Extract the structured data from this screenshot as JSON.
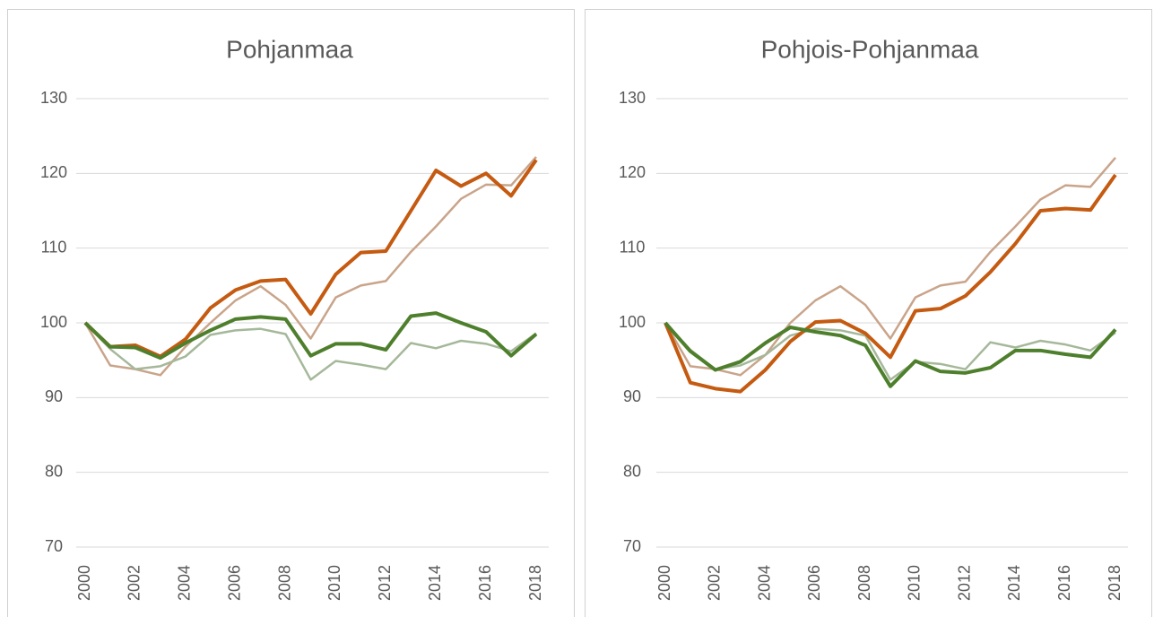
{
  "chart_data": [
    {
      "type": "line",
      "title": "Pohjanmaa",
      "x": [
        2000,
        2001,
        2002,
        2003,
        2004,
        2005,
        2006,
        2007,
        2008,
        2009,
        2010,
        2011,
        2012,
        2013,
        2014,
        2015,
        2016,
        2017,
        2018
      ],
      "xlim": [
        2000,
        2018
      ],
      "xticks": [
        2000,
        2002,
        2004,
        2006,
        2008,
        2010,
        2012,
        2014,
        2016,
        2018
      ],
      "ylim": [
        70,
        130
      ],
      "yticks": [
        70,
        80,
        90,
        100,
        110,
        120,
        130
      ],
      "grid": true,
      "series": [
        {
          "color": "#c9a48a",
          "values": [
            100,
            94.3,
            93.8,
            93,
            96.8,
            100,
            103,
            104.9,
            102.4,
            97.9,
            103.4,
            105,
            105.6,
            109.5,
            112.9,
            116.6,
            118.5,
            118.4,
            122.2
          ]
        },
        {
          "color": "#a5b89a",
          "values": [
            100,
            96.5,
            93.8,
            94.2,
            95.5,
            98.4,
            99,
            99.2,
            98.5,
            92.4,
            94.9,
            94.4,
            93.8,
            97.3,
            96.6,
            97.6,
            97.2,
            96.2,
            98.6
          ]
        },
        {
          "color": "#c55a11",
          "values": [
            100,
            96.8,
            97,
            95.5,
            97.8,
            102,
            104.4,
            105.6,
            105.8,
            101.2,
            106.5,
            109.4,
            109.6,
            115,
            120.4,
            118.3,
            120,
            117,
            121.8
          ]
        },
        {
          "color": "#4e7f2c",
          "values": [
            100,
            96.8,
            96.7,
            95.3,
            97.3,
            99,
            100.5,
            100.8,
            100.5,
            95.6,
            97.2,
            97.2,
            96.4,
            100.9,
            101.3,
            100,
            98.8,
            95.6,
            98.5
          ]
        }
      ]
    },
    {
      "type": "line",
      "title": "Pohjois-Pohjanmaa",
      "x": [
        2000,
        2001,
        2002,
        2003,
        2004,
        2005,
        2006,
        2007,
        2008,
        2009,
        2010,
        2011,
        2012,
        2013,
        2014,
        2015,
        2016,
        2017,
        2018
      ],
      "xlim": [
        2000,
        2018
      ],
      "xticks": [
        2000,
        2002,
        2004,
        2006,
        2008,
        2010,
        2012,
        2014,
        2016,
        2018
      ],
      "ylim": [
        70,
        130
      ],
      "yticks": [
        70,
        80,
        90,
        100,
        110,
        120,
        130
      ],
      "grid": true,
      "series": [
        {
          "color": "#c9a48a",
          "values": [
            100,
            94.2,
            93.8,
            93,
            95.7,
            100,
            103,
            104.9,
            102.4,
            97.9,
            103.4,
            105,
            105.5,
            109.5,
            112.9,
            116.5,
            118.4,
            118.2,
            122.1
          ]
        },
        {
          "color": "#a5b89a",
          "values": [
            100,
            96.4,
            93.8,
            94.3,
            95.7,
            98.3,
            99.2,
            99,
            98.3,
            92.4,
            94.8,
            94.5,
            93.8,
            97.4,
            96.7,
            97.6,
            97.1,
            96.3,
            98.7
          ]
        },
        {
          "color": "#c55a11",
          "values": [
            100,
            92,
            91.2,
            90.8,
            93.7,
            97.5,
            100.1,
            100.3,
            98.6,
            95.4,
            101.6,
            101.9,
            103.6,
            106.8,
            110.6,
            115,
            115.3,
            115.1,
            119.8
          ]
        },
        {
          "color": "#4e7f2c",
          "values": [
            100,
            96.2,
            93.7,
            94.8,
            97.3,
            99.4,
            98.8,
            98.3,
            97,
            91.5,
            94.9,
            93.5,
            93.3,
            94,
            96.3,
            96.3,
            95.8,
            95.4,
            99.1
          ]
        }
      ]
    }
  ]
}
